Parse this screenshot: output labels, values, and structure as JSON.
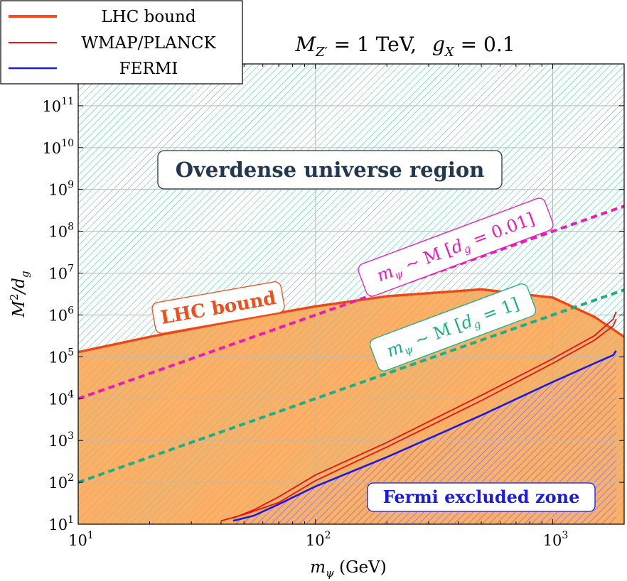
{
  "chart_data": {
    "type": "area",
    "title": "M_Z' = 1 TeV,   g_X = 0.1",
    "title_parts": {
      "lhs": "M",
      "lhs_sub": "Z′",
      "eq": " = 1 TeV,",
      "rhs": "g",
      "rhs_sub": "X",
      "rhs_eq": " = 0.1"
    },
    "xlabel": "m_ψ (GeV)",
    "xlabel_parts": {
      "sym": "m",
      "sub": "ψ",
      "unit": " (GeV)"
    },
    "ylabel": "M²/d_g",
    "ylabel_parts": {
      "sym": "M",
      "sup": "2",
      "rest": "/d",
      "sub": "g"
    },
    "x_scale": "log",
    "y_scale": "log",
    "xlim": [
      10,
      2000
    ],
    "ylim": [
      10,
      1000000000000
    ],
    "x_ticks": [
      {
        "value": 10,
        "base": "10",
        "exp": "1"
      },
      {
        "value": 100,
        "base": "10",
        "exp": "2"
      },
      {
        "value": 1000,
        "base": "10",
        "exp": "3"
      }
    ],
    "y_ticks": [
      {
        "value": 10,
        "base": "10",
        "exp": "1"
      },
      {
        "value": 100,
        "base": "10",
        "exp": "2"
      },
      {
        "value": 1000,
        "base": "10",
        "exp": "3"
      },
      {
        "value": 10000,
        "base": "10",
        "exp": "4"
      },
      {
        "value": 100000,
        "base": "10",
        "exp": "5"
      },
      {
        "value": 1000000,
        "base": "10",
        "exp": "6"
      },
      {
        "value": 10000000,
        "base": "10",
        "exp": "7"
      },
      {
        "value": 100000000,
        "base": "10",
        "exp": "8"
      },
      {
        "value": 1000000000,
        "base": "10",
        "exp": "9"
      },
      {
        "value": 10000000000,
        "base": "10",
        "exp": "10"
      },
      {
        "value": 100000000000,
        "base": "10",
        "exp": "11"
      }
    ],
    "grid": true,
    "legend_position": "top-left",
    "legend": [
      {
        "label": "LHC bound",
        "color": "#f04e1d",
        "width": 4
      },
      {
        "label": "WMAP/PLANCK",
        "color": "#ee1111",
        "width": 2
      },
      {
        "label": "FERMI",
        "color": "#1a1ae6",
        "width": 2.5
      }
    ],
    "colors": {
      "lhc": "#f04e1d",
      "lhc_fill": "#ffb066",
      "relic": "#ee1111",
      "fermi": "#1a1ae6",
      "hatch_overdense": "#3cc4a0",
      "hatch_fermi": "#6b6bff",
      "magenta": "#ee1ab8",
      "teal": "#18b088",
      "grid": "#b9b9b9",
      "dark_text": "#22384e"
    },
    "series": [
      {
        "name": "LHC bound",
        "x": [
          10,
          20,
          50,
          100,
          200,
          500,
          1000,
          1500,
          2000
        ],
        "y": [
          130000,
          300000,
          800000,
          1600000,
          2800000,
          4100000,
          2600000,
          900000,
          300000
        ]
      },
      {
        "name": "WMAP/PLANCK upper",
        "x": [
          45,
          55,
          70,
          100,
          200,
          500,
          1000,
          1500,
          1800,
          1850
        ],
        "y": [
          14,
          22,
          45,
          150,
          900,
          12000,
          90000,
          320000,
          800000,
          1200000
        ]
      },
      {
        "name": "WMAP/PLANCK lower",
        "x": [
          40,
          50,
          70,
          100,
          200,
          500,
          1000,
          1500,
          1800,
          1850
        ],
        "y": [
          12,
          17,
          33,
          110,
          700,
          9000,
          70000,
          250000,
          550000,
          800000
        ]
      },
      {
        "name": "FERMI",
        "x": [
          45,
          55,
          70,
          100,
          200,
          500,
          1000,
          1500,
          1800,
          1850
        ],
        "y": [
          12,
          16,
          30,
          80,
          400,
          4000,
          25000,
          70000,
          110000,
          140000
        ]
      },
      {
        "name": "m_ψ ~ M [d_g = 0.01]",
        "style": "dashed",
        "x": [
          10,
          2000
        ],
        "y": [
          10000,
          400000000
        ]
      },
      {
        "name": "m_ψ ~ M [d_g = 1]",
        "style": "dashed",
        "x": [
          10,
          2000
        ],
        "y": [
          100,
          4000000
        ]
      }
    ],
    "annotations": [
      {
        "id": "overdense",
        "text": "Overdense universe region",
        "x": 110,
        "y": 2500000000
      },
      {
        "id": "lhc",
        "text": "LHC bound",
        "x": 30,
        "y": 1000000
      },
      {
        "id": "dg001",
        "text": "m_ψ ~ M [d_g = 0.01]",
        "sym": "m",
        "sub": "ψ",
        "mid": " ~ M [",
        "dsym": "d",
        "dsub": "g",
        "dend": " = 0.01]",
        "x": 500,
        "y": 14000000
      },
      {
        "id": "dg1",
        "text": "m_ψ ~ M [d_g = 1]",
        "sym": "m",
        "sub": "ψ",
        "mid": " ~ M [",
        "dsym": "d",
        "dsub": "g",
        "dend": " = 1]",
        "x": 600,
        "y": 180000
      },
      {
        "id": "fermi",
        "text": "Fermi excluded zone",
        "x": 450,
        "y": 25
      }
    ]
  }
}
